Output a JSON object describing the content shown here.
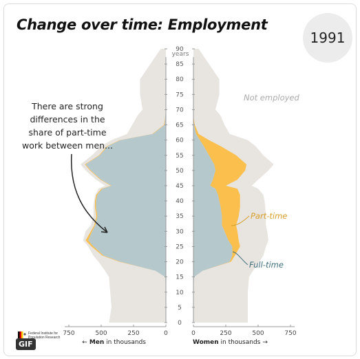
{
  "header": {
    "title": "Change over time: Employment",
    "year": "1991"
  },
  "annotations": {
    "callout": [
      "There are strong",
      "differences in the",
      "share of part-time",
      "work between men..."
    ],
    "not_employed": "Not employed",
    "part_time": "Part-time",
    "full_time": "Full-time"
  },
  "axis": {
    "age_label": "years",
    "men_label_bold": "Men",
    "men_label_rest": " in thousands",
    "women_label_bold": "Women",
    "women_label_rest": " in thousands",
    "men_arrow": "←",
    "women_arrow": "→"
  },
  "footer": {
    "institute": "Federal Institute for Population Research",
    "badge": "GIF"
  },
  "colors": {
    "not_employed": "#e8e4df",
    "full_time": "#b5c8cc",
    "part_time": "#fbbf4d",
    "part_time_label": "#d8a02a",
    "full_time_label": "#3f6e7a",
    "not_employed_label": "#aaaaaa"
  },
  "chart_data": {
    "type": "area",
    "title": "Change over time: Employment",
    "ages": [
      0,
      5,
      10,
      15,
      17,
      20,
      22,
      25,
      27,
      30,
      32,
      35,
      38,
      40,
      42,
      44,
      45,
      47,
      50,
      52,
      55,
      58,
      60,
      62,
      65,
      68,
      70,
      75,
      80,
      85,
      90
    ],
    "y_ticks": [
      0,
      5,
      10,
      15,
      20,
      25,
      30,
      35,
      40,
      45,
      50,
      55,
      60,
      65,
      70,
      75,
      80,
      85,
      90
    ],
    "ylim": [
      0,
      90
    ],
    "x_ticks": [
      750,
      500,
      250,
      0
    ],
    "xlim": [
      0,
      750
    ],
    "men": {
      "total": [
        440,
        420,
        430,
        440,
        470,
        520,
        560,
        600,
        640,
        620,
        580,
        560,
        560,
        555,
        545,
        520,
        470,
        540,
        620,
        660,
        570,
        500,
        420,
        300,
        260,
        220,
        180,
        200,
        200,
        120,
        40
      ],
      "full_time": [
        0,
        0,
        0,
        5,
        80,
        350,
        480,
        560,
        600,
        570,
        545,
        530,
        540,
        540,
        530,
        490,
        420,
        500,
        580,
        620,
        510,
        450,
        350,
        100,
        10,
        5,
        0,
        0,
        0,
        0,
        0
      ],
      "part_time": [
        0,
        0,
        0,
        0,
        0,
        10,
        10,
        15,
        20,
        10,
        8,
        8,
        8,
        8,
        8,
        8,
        6,
        6,
        6,
        6,
        6,
        6,
        6,
        5,
        5,
        0,
        0,
        0,
        0,
        0,
        0
      ]
    },
    "women": {
      "total": [
        420,
        420,
        420,
        430,
        460,
        510,
        540,
        560,
        580,
        570,
        560,
        560,
        555,
        550,
        540,
        500,
        450,
        500,
        580,
        620,
        540,
        480,
        420,
        280,
        240,
        210,
        170,
        200,
        200,
        120,
        40
      ],
      "full_time": [
        0,
        0,
        0,
        5,
        70,
        280,
        300,
        300,
        270,
        240,
        220,
        220,
        210,
        200,
        190,
        170,
        130,
        150,
        170,
        160,
        120,
        80,
        50,
        20,
        5,
        0,
        0,
        0,
        0,
        0,
        0
      ],
      "part_time": [
        0,
        0,
        0,
        0,
        0,
        10,
        20,
        60,
        80,
        100,
        110,
        130,
        150,
        160,
        170,
        170,
        120,
        190,
        230,
        250,
        210,
        130,
        70,
        20,
        5,
        0,
        0,
        0,
        0,
        0,
        0
      ]
    }
  }
}
